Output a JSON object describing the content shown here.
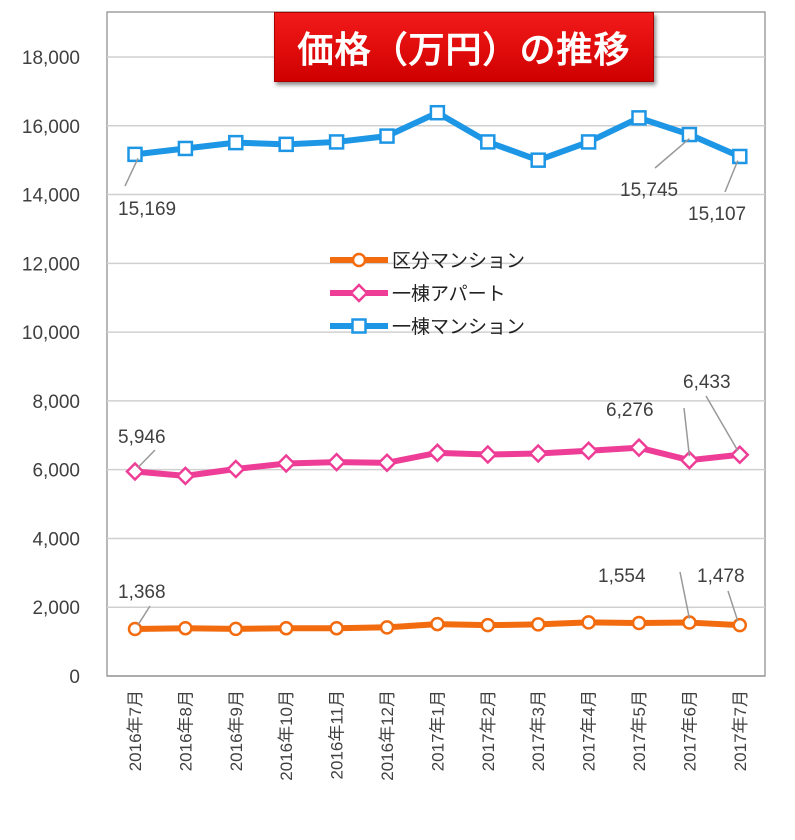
{
  "chart_data": {
    "type": "line",
    "title": "価格（万円）の推移",
    "categories": [
      "2016年7月",
      "2016年8月",
      "2016年9月",
      "2016年10月",
      "2016年11月",
      "2016年12月",
      "2017年1月",
      "2017年2月",
      "2017年3月",
      "2017年4月",
      "2017年5月",
      "2017年6月",
      "2017年7月"
    ],
    "ylim": [
      0,
      18000
    ],
    "yticks": [
      "0",
      "2,000",
      "4,000",
      "6,000",
      "8,000",
      "10,000",
      "12,000",
      "14,000",
      "16,000",
      "18,000"
    ],
    "grid": true,
    "legend_position": "center",
    "series": [
      {
        "name": "区分マンション",
        "color": "#F26B0F",
        "marker": "circle",
        "values": [
          1368,
          1390,
          1370,
          1390,
          1390,
          1415,
          1510,
          1480,
          1500,
          1560,
          1540,
          1554,
          1478
        ],
        "labels": {
          "0": "1,368",
          "11": "1,554",
          "12": "1,478"
        }
      },
      {
        "name": "一棟アパート",
        "color": "#EE3D96",
        "marker": "diamond",
        "values": [
          5946,
          5820,
          6020,
          6180,
          6220,
          6200,
          6490,
          6440,
          6470,
          6550,
          6640,
          6276,
          6433
        ],
        "labels": {
          "0": "5,946",
          "11": "6,276",
          "12": "6,433"
        }
      },
      {
        "name": "一棟マンション",
        "color": "#1E96E6",
        "marker": "square",
        "values": [
          15169,
          15340,
          15510,
          15460,
          15530,
          15700,
          16380,
          15530,
          15000,
          15530,
          16230,
          15745,
          15107
        ],
        "labels": {
          "0": "15,169",
          "11": "15,745",
          "12": "15,107"
        }
      }
    ]
  }
}
